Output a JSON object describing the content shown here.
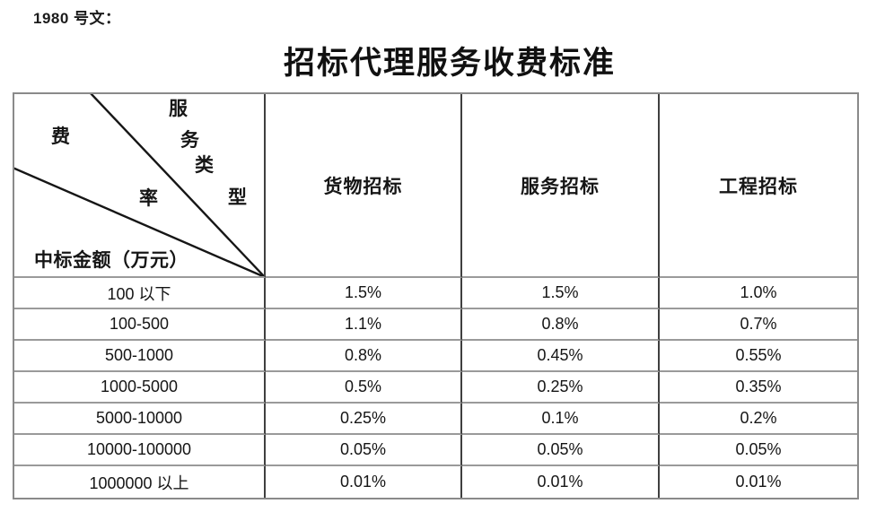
{
  "doc": {
    "ref_label": "1980 号文：",
    "title": "招标代理服务收费标准"
  },
  "table": {
    "corner": {
      "fee_label": "费",
      "rate_label": "率",
      "service_type_chars": [
        "服",
        "务",
        "类",
        "型"
      ],
      "amount_label": "中标金额（万元）"
    },
    "columns": [
      "货物招标",
      "服务招标",
      "工程招标"
    ],
    "rows": [
      {
        "range": "100 以下",
        "values": [
          "1.5%",
          "1.5%",
          "1.0%"
        ]
      },
      {
        "range": "100-500",
        "values": [
          "1.1%",
          "0.8%",
          "0.7%"
        ]
      },
      {
        "range": "500-1000",
        "values": [
          "0.8%",
          "0.45%",
          "0.55%"
        ]
      },
      {
        "range": "1000-5000",
        "values": [
          "0.5%",
          "0.25%",
          "0.35%"
        ]
      },
      {
        "range": "5000-10000",
        "values": [
          "0.25%",
          "0.1%",
          "0.2%"
        ]
      },
      {
        "range": "10000-100000",
        "values": [
          "0.05%",
          "0.05%",
          "0.05%"
        ]
      },
      {
        "range": "1000000 以上",
        "values": [
          "0.01%",
          "0.01%",
          "0.01%"
        ]
      }
    ]
  }
}
